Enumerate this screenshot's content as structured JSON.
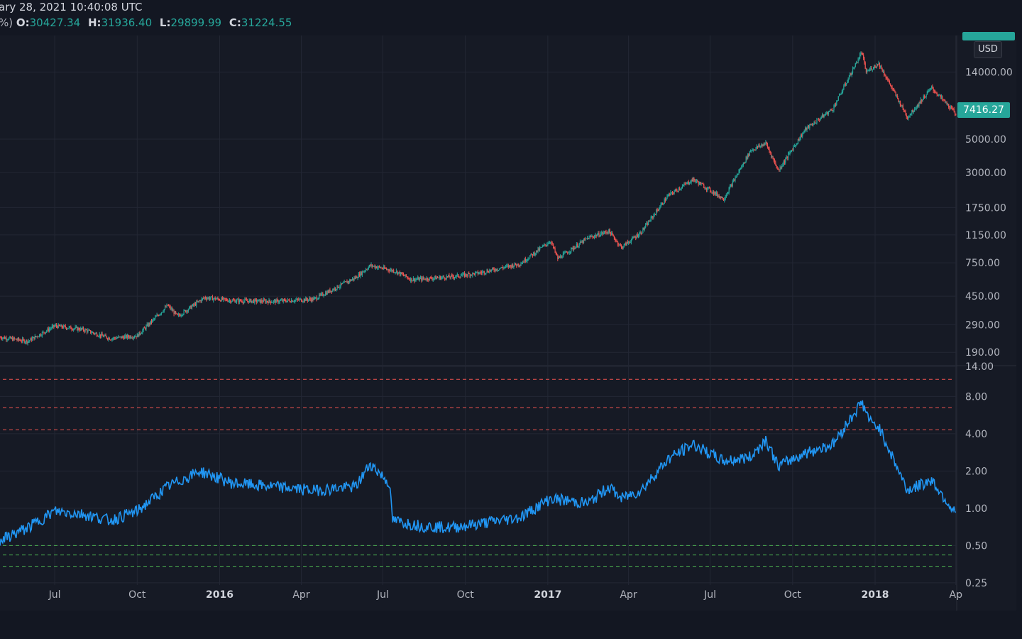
{
  "header": {
    "datetime": "ary 28, 2021 10:40:08 UTC",
    "prefix": "%)",
    "ohlc": [
      {
        "key": "O:",
        "value": "30427.34"
      },
      {
        "key": "H:",
        "value": "31936.40"
      },
      {
        "key": "L:",
        "value": "29899.99"
      },
      {
        "key": "C:",
        "value": "31224.55"
      }
    ]
  },
  "currency_label": "USD",
  "last_price_label": "7416.27",
  "colors": {
    "up": "#26a69a",
    "down": "#ef5350",
    "indicator": "#2196f3",
    "band_red": "#ef5350",
    "band_green": "#4caf50",
    "grid": "#232734"
  },
  "chart_data": [
    {
      "type": "candlestick",
      "scale": "log",
      "ylim": [
        160,
        22000
      ],
      "xlim": [
        "2015-05-01",
        "2018-04-02"
      ],
      "y_ticks": [
        {
          "value": 14000,
          "label": "14000.00"
        },
        {
          "value": 5000,
          "label": "5000.00"
        },
        {
          "value": 3000,
          "label": "3000.00"
        },
        {
          "value": 1750,
          "label": "1750.00"
        },
        {
          "value": 1150,
          "label": "1150.00"
        },
        {
          "value": 750,
          "label": "750.00"
        },
        {
          "value": 450,
          "label": "450.00"
        },
        {
          "value": 290,
          "label": "290.00"
        },
        {
          "value": 190,
          "label": "190.00"
        }
      ],
      "series": [
        {
          "x": [
            "2015-05-01",
            "2015-06-01",
            "2015-07-01",
            "2015-08-01",
            "2015-09-01",
            "2015-10-01",
            "2015-11-04",
            "2015-11-15",
            "2015-12-15",
            "2016-01-15",
            "2016-03-01",
            "2016-04-15",
            "2016-06-01",
            "2016-06-17",
            "2016-07-15",
            "2016-08-02",
            "2016-09-15",
            "2016-10-15",
            "2016-12-01",
            "2017-01-04",
            "2017-01-12",
            "2017-02-15",
            "2017-03-10",
            "2017-03-24",
            "2017-04-15",
            "2017-05-15",
            "2017-06-12",
            "2017-07-16",
            "2017-08-15",
            "2017-09-01",
            "2017-09-15",
            "2017-10-15",
            "2017-11-15",
            "2017-12-17",
            "2017-12-22",
            "2018-01-05",
            "2018-02-06",
            "2018-03-05",
            "2018-04-01"
          ],
          "close": [
            240,
            225,
            285,
            270,
            235,
            245,
            390,
            330,
            440,
            420,
            415,
            430,
            600,
            720,
            660,
            580,
            605,
            640,
            740,
            1050,
            800,
            1100,
            1220,
            950,
            1200,
            2100,
            2700,
            2000,
            4200,
            4700,
            3100,
            5800,
            8000,
            19000,
            14000,
            16000,
            7000,
            11000,
            7400
          ]
        }
      ]
    },
    {
      "type": "line",
      "scale": "log",
      "ylim": [
        0.24,
        14
      ],
      "xlim": [
        "2015-05-01",
        "2018-04-02"
      ],
      "y_ticks": [
        {
          "value": 14,
          "label": "14.00"
        },
        {
          "value": 8,
          "label": "8.00"
        },
        {
          "value": 4,
          "label": "4.00"
        },
        {
          "value": 2,
          "label": "2.00"
        },
        {
          "value": 1,
          "label": "1.00"
        },
        {
          "value": 0.5,
          "label": "0.50"
        },
        {
          "value": 0.25,
          "label": "0.25"
        }
      ],
      "bands": {
        "red": [
          11,
          6.5,
          4.3
        ],
        "green": [
          0.5,
          0.42,
          0.34
        ]
      },
      "series": [
        {
          "x": [
            "2015-05-01",
            "2015-06-01",
            "2015-07-01",
            "2015-08-01",
            "2015-09-01",
            "2015-10-01",
            "2015-11-04",
            "2015-12-10",
            "2016-01-15",
            "2016-03-01",
            "2016-04-15",
            "2016-06-01",
            "2016-06-17",
            "2016-07-08",
            "2016-07-12",
            "2016-08-15",
            "2016-09-15",
            "2016-10-15",
            "2016-12-01",
            "2017-01-04",
            "2017-02-15",
            "2017-03-10",
            "2017-03-24",
            "2017-04-15",
            "2017-05-15",
            "2017-06-12",
            "2017-07-16",
            "2017-08-15",
            "2017-09-01",
            "2017-09-15",
            "2017-10-15",
            "2017-11-15",
            "2017-12-17",
            "2017-12-28",
            "2018-01-05",
            "2018-02-06",
            "2018-03-05",
            "2018-04-01"
          ],
          "values": [
            0.55,
            0.7,
            0.95,
            0.9,
            0.8,
            0.95,
            1.5,
            2.0,
            1.6,
            1.5,
            1.4,
            1.5,
            2.3,
            1.6,
            0.8,
            0.72,
            0.7,
            0.75,
            0.85,
            1.2,
            1.1,
            1.5,
            1.2,
            1.4,
            2.5,
            3.3,
            2.4,
            2.6,
            3.6,
            2.2,
            2.8,
            3.3,
            7.2,
            4.8,
            4.6,
            1.4,
            1.7,
            0.9
          ]
        }
      ]
    }
  ],
  "x_axis": [
    {
      "label": "Jul",
      "date": "2015-07-01"
    },
    {
      "label": "Oct",
      "date": "2015-10-01"
    },
    {
      "label": "2016",
      "date": "2016-01-01",
      "major": true
    },
    {
      "label": "Apr",
      "date": "2016-04-01"
    },
    {
      "label": "Jul",
      "date": "2016-07-01"
    },
    {
      "label": "Oct",
      "date": "2016-10-01"
    },
    {
      "label": "2017",
      "date": "2017-01-01",
      "major": true
    },
    {
      "label": "Apr",
      "date": "2017-04-01"
    },
    {
      "label": "Jul",
      "date": "2017-07-01"
    },
    {
      "label": "Oct",
      "date": "2017-10-01"
    },
    {
      "label": "2018",
      "date": "2018-01-01",
      "major": true
    },
    {
      "label": "Ap",
      "date": "2018-04-01"
    }
  ]
}
